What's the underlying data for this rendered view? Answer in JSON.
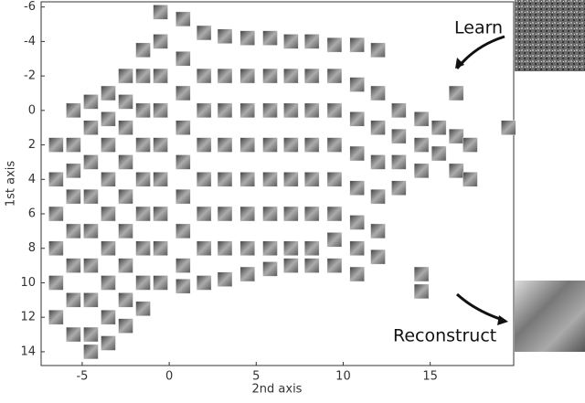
{
  "chart_data": {
    "type": "scatter",
    "x_label": "2nd axis",
    "y_label": "1st axis",
    "xlim": [
      -7.36,
      19.8
    ],
    "ylim": [
      -6.3,
      14.8
    ],
    "y_inverted": true,
    "xticks": [
      -5,
      0,
      5,
      10,
      15
    ],
    "yticks": [
      -6,
      -4,
      -2,
      0,
      2,
      4,
      6,
      8,
      10,
      12,
      14
    ],
    "color": "#8a8a8a",
    "x": [
      -6.5,
      -6.5,
      -6.5,
      -6.5,
      -6.5,
      -6.5,
      -5.5,
      -5.5,
      -5.5,
      -5.5,
      -5.5,
      -5.5,
      -5.5,
      -5.5,
      -4.5,
      -4.5,
      -4.5,
      -4.5,
      -4.5,
      -4.5,
      -4.5,
      -4.5,
      -4.5,
      -3.5,
      -3.5,
      -3.5,
      -3.5,
      -3.5,
      -3.5,
      -3.5,
      -3.5,
      -3.5,
      -2.5,
      -2.5,
      -2.5,
      -2.5,
      -2.5,
      -2.5,
      -2.5,
      -2.5,
      -2.5,
      -1.5,
      -1.5,
      -1.5,
      -1.5,
      -1.5,
      -1.5,
      -1.5,
      -1.5,
      -1.5,
      -0.5,
      -0.5,
      -0.5,
      -0.5,
      -0.5,
      -0.5,
      -0.5,
      -0.5,
      -0.5,
      0.8,
      0.8,
      0.8,
      0.8,
      0.8,
      0.8,
      0.8,
      0.8,
      0.8,
      2,
      2,
      2,
      2,
      2,
      2,
      2,
      2,
      3.2,
      3.2,
      3.2,
      3.2,
      3.2,
      3.2,
      3.2,
      3.2,
      4.5,
      4.5,
      4.5,
      4.5,
      4.5,
      4.5,
      4.5,
      4.5,
      5.8,
      5.8,
      5.8,
      5.8,
      5.8,
      5.8,
      5.8,
      5.8,
      7,
      7,
      7,
      7,
      7,
      7,
      7,
      7,
      8.2,
      8.2,
      8.2,
      8.2,
      8.2,
      8.2,
      8.2,
      8.2,
      9.5,
      9.5,
      9.5,
      9.5,
      9.5,
      9.5,
      9.5,
      9.5,
      10.8,
      10.8,
      10.8,
      10.8,
      10.8,
      10.8,
      10.8,
      10.8,
      12,
      12,
      12,
      12,
      12,
      12,
      12,
      13.2,
      13.2,
      13.2,
      13.2,
      14.5,
      14.5,
      14.5,
      14.5,
      14.5,
      15.5,
      15.5,
      16.5,
      16.5,
      16.5,
      17.3,
      17.3,
      19.5
    ],
    "values": [
      2,
      4,
      6,
      8,
      10,
      12,
      0,
      2,
      3.5,
      5,
      7,
      9,
      11,
      13,
      -0.5,
      1,
      3,
      5,
      7,
      9,
      11,
      13,
      14,
      -1,
      0.5,
      2,
      4,
      6,
      8,
      10,
      12,
      13.5,
      -2,
      -0.5,
      1,
      3,
      5,
      7,
      9,
      11,
      12.5,
      -3.5,
      -2,
      0,
      2,
      4,
      6,
      8,
      10,
      11.5,
      -5.7,
      -4,
      -2,
      0,
      2,
      4,
      6,
      8,
      10,
      -5.3,
      -3,
      -1,
      1,
      3,
      5,
      7,
      9,
      10.2,
      -4.5,
      -2,
      0,
      2,
      4,
      6,
      8,
      10,
      -4.3,
      -2,
      0,
      2,
      4,
      6,
      8,
      9.8,
      -4.2,
      -2,
      0,
      2,
      4,
      6,
      8,
      9.5,
      -4.2,
      -2,
      0,
      2,
      4,
      6,
      8,
      9.2,
      -4,
      -2,
      0,
      2,
      4,
      6,
      8,
      9,
      -4,
      -2,
      0,
      2,
      4,
      6,
      8,
      9,
      -3.8,
      -2,
      0,
      2,
      4,
      6,
      7.5,
      9,
      -3.8,
      -1.5,
      0.5,
      2.5,
      4.5,
      6.5,
      8,
      9.5,
      -3.5,
      -1,
      1,
      3,
      5,
      7,
      8.5,
      0,
      1.5,
      3,
      4.5,
      0.5,
      2,
      3.5,
      9.5,
      10.5,
      1,
      2.5,
      -1,
      1.5,
      3.5,
      2,
      4,
      1
    ],
    "annotations": [
      "Learn",
      "Reconstruct"
    ]
  }
}
